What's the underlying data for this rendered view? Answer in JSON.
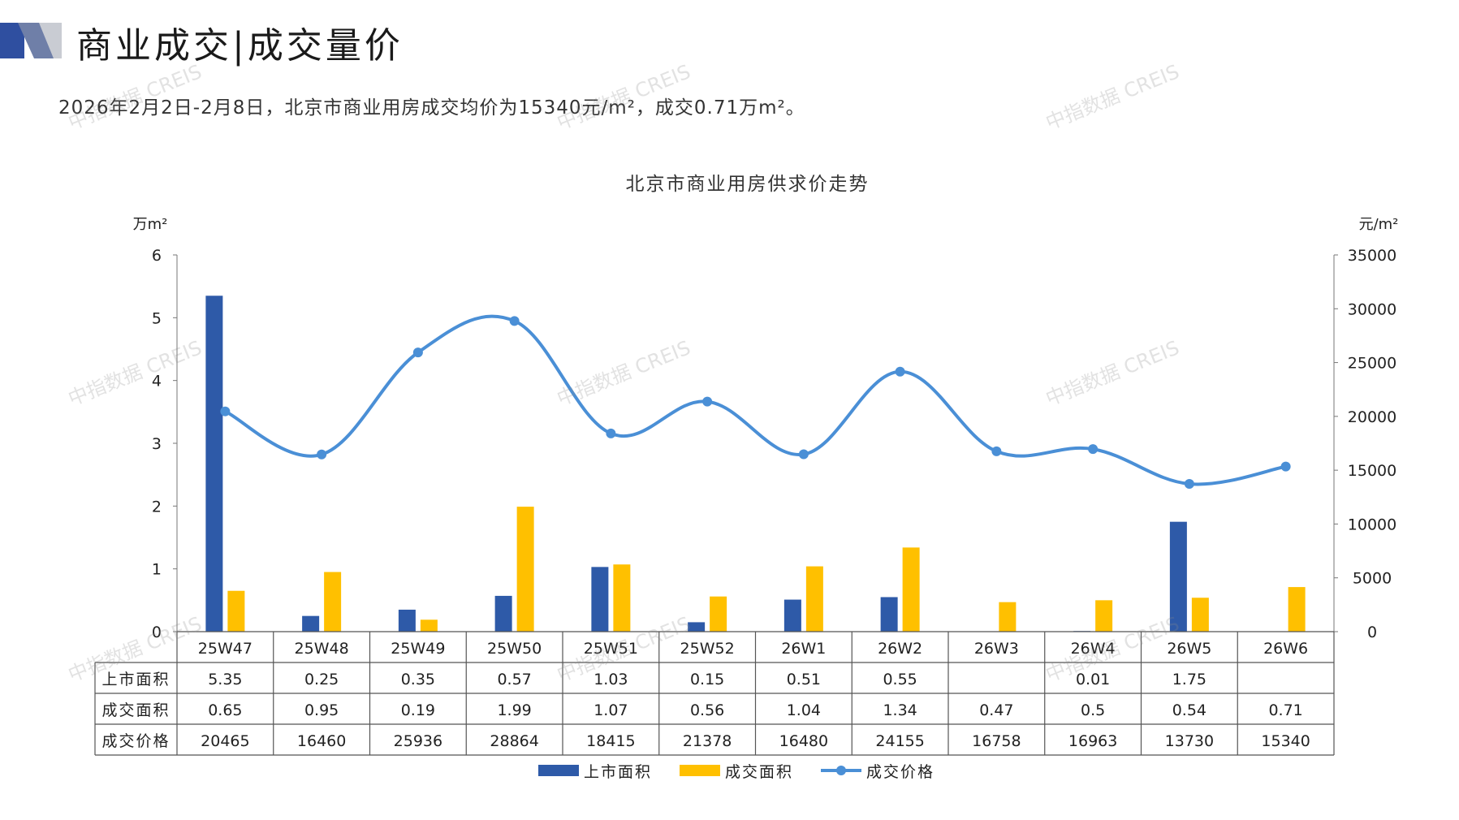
{
  "page": {
    "title": "商业成交|成交量价",
    "subtitle": "2026年2月2日-2月8日，北京市商业用房成交均价为15340元/m²，成交0.71万m²。",
    "watermark": "中指数据 CREIS",
    "logo_colors": [
      "#2f4fa0",
      "#6f7fa8",
      "#c9ccd3"
    ]
  },
  "chart_data": {
    "type": "bar",
    "title": "北京市商业用房供求价走势",
    "left_unit": "万m²",
    "right_unit": "元/m²",
    "categories": [
      "25W47",
      "25W48",
      "25W49",
      "25W50",
      "25W51",
      "25W52",
      "26W1",
      "26W2",
      "26W3",
      "26W4",
      "26W5",
      "26W6"
    ],
    "y_left": {
      "min": 0,
      "max": 6,
      "ticks": [
        "0",
        "1",
        "2",
        "3",
        "4",
        "5",
        "6"
      ]
    },
    "y_right": {
      "min": 0,
      "max": 35000,
      "ticks": [
        "0",
        "5000",
        "10000",
        "15000",
        "20000",
        "25000",
        "30000",
        "35000"
      ]
    },
    "series": [
      {
        "name": "上市面积",
        "type": "bar",
        "axis": "left",
        "color": "#2e5aa8",
        "values": [
          5.35,
          0.25,
          0.35,
          0.57,
          1.03,
          0.15,
          0.51,
          0.55,
          null,
          0.01,
          1.75,
          null
        ],
        "labels": [
          "5.35",
          "0.25",
          "0.35",
          "0.57",
          "1.03",
          "0.15",
          "0.51",
          "0.55",
          "",
          "0.01",
          "1.75",
          ""
        ]
      },
      {
        "name": "成交面积",
        "type": "bar",
        "axis": "left",
        "color": "#ffc000",
        "values": [
          0.65,
          0.95,
          0.19,
          1.99,
          1.07,
          0.56,
          1.04,
          1.34,
          0.47,
          0.5,
          0.54,
          0.71
        ],
        "labels": [
          "0.65",
          "0.95",
          "0.19",
          "1.99",
          "1.07",
          "0.56",
          "1.04",
          "1.34",
          "0.47",
          "0.5",
          "0.54",
          "0.71"
        ]
      },
      {
        "name": "成交价格",
        "type": "line",
        "axis": "right",
        "color": "#4a8fd6",
        "values": [
          20465,
          16460,
          25936,
          28864,
          18415,
          21378,
          16480,
          24155,
          16758,
          16963,
          13730,
          15340
        ],
        "labels": [
          "20465",
          "16460",
          "25936",
          "28864",
          "18415",
          "21378",
          "16480",
          "24155",
          "16758",
          "16963",
          "13730",
          "15340"
        ]
      }
    ],
    "legend_position": "bottom",
    "grid": false
  }
}
